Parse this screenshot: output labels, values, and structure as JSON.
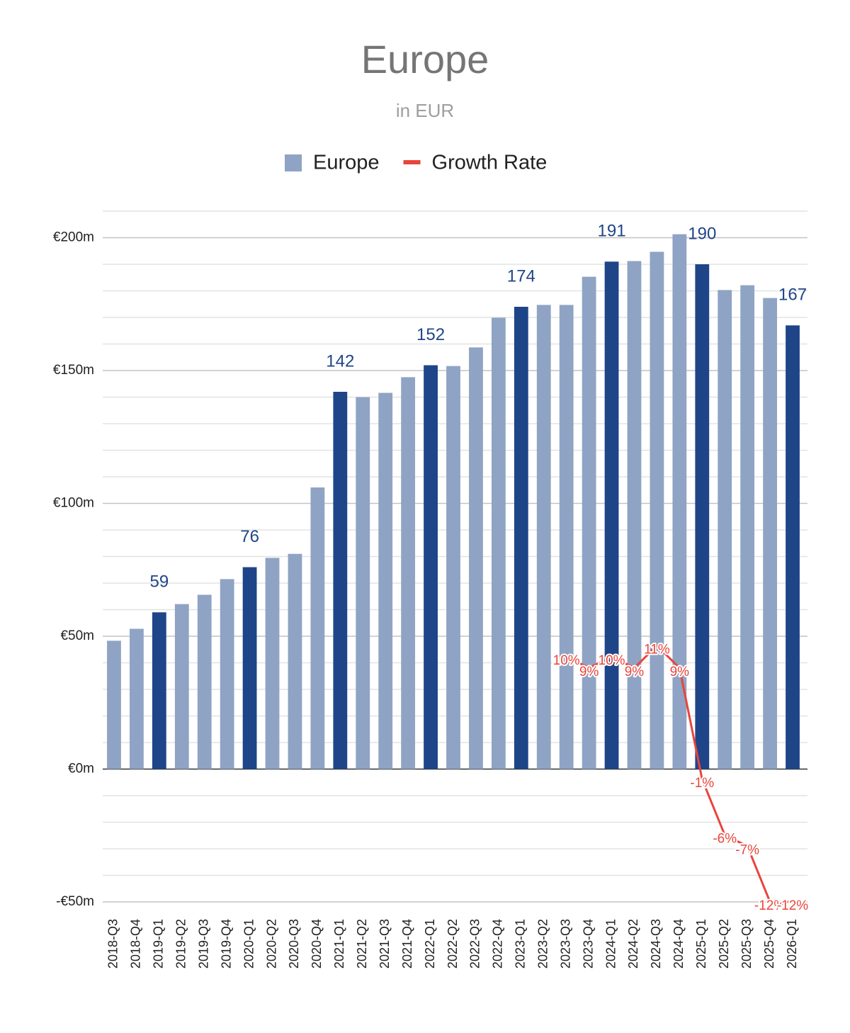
{
  "chart_data": {
    "type": "bar",
    "title": "Europe",
    "subtitle": "in EUR",
    "categories": [
      "2018-Q3",
      "2018-Q4",
      "2019-Q1",
      "2019-Q2",
      "2019-Q3",
      "2019-Q4",
      "2020-Q1",
      "2020-Q2",
      "2020-Q3",
      "2020-Q4",
      "2021-Q1",
      "2021-Q2",
      "2021-Q3",
      "2021-Q4",
      "2022-Q1",
      "2022-Q2",
      "2022-Q3",
      "2022-Q4",
      "2023-Q1",
      "2023-Q2",
      "2023-Q3",
      "2023-Q4",
      "2024-Q1",
      "2024-Q2",
      "2024-Q3",
      "2024-Q4",
      "2025-Q1",
      "2025-Q2",
      "2025-Q3",
      "2025-Q4",
      "2026-Q1"
    ],
    "series": [
      {
        "name": "Europe",
        "type": "bar",
        "color": "#8fa3c4",
        "values": [
          48.3,
          52.8,
          59,
          62.1,
          65.6,
          71.5,
          76,
          79.5,
          81,
          106,
          142,
          140,
          141.6,
          147.5,
          152,
          151.7,
          158.7,
          169.9,
          174,
          174.7,
          174.7,
          185.3,
          191,
          191.2,
          194.7,
          201.3,
          190,
          180.3,
          182.1,
          177.3,
          167
        ],
        "colors": [
          "#8fa3c4",
          "#8fa3c4",
          "#1f4589",
          "#8fa3c4",
          "#8fa3c4",
          "#8fa3c4",
          "#1f4589",
          "#8fa3c4",
          "#8fa3c4",
          "#8fa3c4",
          "#1f4589",
          "#8fa3c4",
          "#8fa3c4",
          "#8fa3c4",
          "#1f4589",
          "#8fa3c4",
          "#8fa3c4",
          "#8fa3c4",
          "#1f4589",
          "#8fa3c4",
          "#8fa3c4",
          "#8fa3c4",
          "#1f4589",
          "#8fa3c4",
          "#8fa3c4",
          "#8fa3c4",
          "#1f4589",
          "#8fa3c4",
          "#8fa3c4",
          "#8fa3c4",
          "#1f4589"
        ],
        "value_labels": [
          null,
          null,
          "59",
          null,
          null,
          null,
          "76",
          null,
          null,
          null,
          "142",
          null,
          null,
          null,
          "152",
          null,
          null,
          null,
          "174",
          null,
          null,
          null,
          "191",
          null,
          null,
          null,
          "190",
          null,
          null,
          null,
          "167"
        ],
        "label_color": "#1f4589"
      },
      {
        "name": "Growth Rate",
        "type": "line",
        "axis": "y2",
        "color": "#e8453c",
        "values": [
          null,
          null,
          null,
          null,
          null,
          null,
          null,
          null,
          null,
          null,
          null,
          null,
          null,
          null,
          null,
          null,
          null,
          null,
          null,
          null,
          10,
          9,
          10,
          9,
          11,
          9,
          -1,
          -6,
          -7,
          -12,
          -12
        ],
        "value_labels": [
          null,
          null,
          null,
          null,
          null,
          null,
          null,
          null,
          null,
          null,
          null,
          null,
          null,
          null,
          null,
          null,
          null,
          null,
          null,
          null,
          "10%",
          "9%",
          "10%",
          "9%",
          "11%",
          "9%",
          "-1%",
          "-6%",
          "-7%",
          "-12%",
          "-12%"
        ]
      }
    ],
    "ylim": [
      -50,
      210
    ],
    "yticks": [
      {
        "value": -50,
        "label": "-€50m"
      },
      {
        "value": 0,
        "label": "€0m"
      },
      {
        "value": 50,
        "label": "€50m"
      },
      {
        "value": 100,
        "label": "€100m"
      },
      {
        "value": 150,
        "label": "€150m"
      },
      {
        "value": 200,
        "label": "€200m"
      }
    ],
    "minor_yticks": [
      -40,
      -30,
      -20,
      -10,
      10,
      20,
      30,
      40,
      60,
      70,
      80,
      90,
      110,
      120,
      130,
      140,
      160,
      170,
      180,
      190,
      210
    ],
    "y2lim": [
      -12,
      50
    ],
    "grid": true,
    "legend": "top"
  }
}
